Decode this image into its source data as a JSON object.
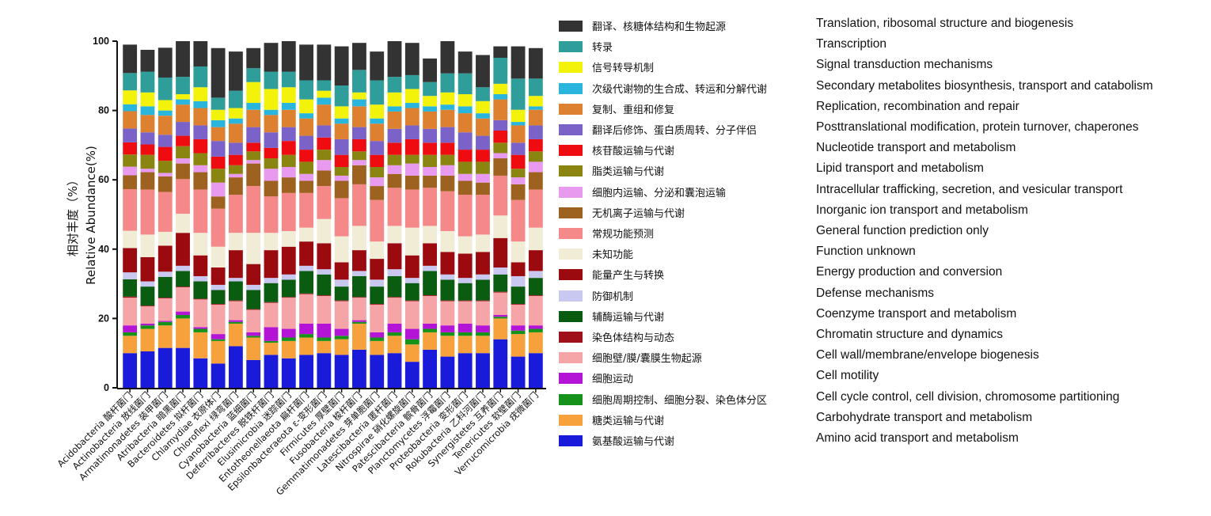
{
  "chart_data": {
    "type": "bar",
    "stacked": true,
    "ylabel_cn": "相对丰度（%）",
    "ylabel_en": "Relative Abundance(%)",
    "ylim": [
      0,
      100
    ],
    "yticks": [
      0,
      20,
      40,
      60,
      80,
      100
    ],
    "categories": [
      "Acidobacteria 酸杆菌门",
      "Actinobacteria 放线菌门",
      "Armatimonadetes 装甲菌门",
      "Atribacteria 暗黑菌门",
      "Bacteroidetes 拟杆菌门",
      "Chlamydiae 衣原体门",
      "Chloroflexi 绿弯菌门",
      "Cyanobacteria 蓝细菌门",
      "Deferribacteres 脱铁杆菌门",
      "Elusimicrobia 迷踪菌门",
      "Entotheonellaeota 扁杆菌门",
      "Epsilonbacteraeota ε-变形菌门",
      "Firmicutes 厚壁菌门",
      "Fusobacteria 梭杆菌门",
      "Gemmatimonadetes 芽单胞菌门",
      "Latescibacteria 匿杆菌门",
      "Nitrospirae 硝化螺旋菌门",
      "Patescibacteria 髌骨菌门",
      "Planctomycetes 浮霉菌门",
      "Proteobacteria 变形菌门",
      "Rokubacteria 乙科河菌门",
      "Synergistetes 互养菌门",
      "Tenericutes 软壁菌门",
      "Verrucomicrobia 疣微菌门"
    ],
    "series": [
      {
        "name": "氨基酸运输与代谢",
        "name_en": "Amino acid transport and metabolism",
        "color": "#1a1adb",
        "values": [
          10,
          10.5,
          11.5,
          11.5,
          8.5,
          7,
          12,
          8,
          9.5,
          8.5,
          9.5,
          10,
          9.5,
          11,
          9.5,
          10,
          7.5,
          11,
          9,
          10,
          10,
          14,
          9,
          10
        ]
      },
      {
        "name": "糖类运输与代谢",
        "name_en": "Carbohydrate transport and metabolism",
        "color": "#f6a13c",
        "values": [
          5,
          6.5,
          6.5,
          8.5,
          7.5,
          6.5,
          6.5,
          6.5,
          3.5,
          5,
          5,
          3.5,
          4.5,
          7.5,
          4,
          5,
          5,
          5,
          6,
          5,
          5,
          6,
          6.5,
          6
        ]
      },
      {
        "name": "细胞周期控制、细胞分裂、染色体分区",
        "name_en": "Cell cycle control, cell division, chromosome partitioning",
        "color": "#16921a",
        "values": [
          1,
          1,
          1,
          1,
          1,
          0.5,
          0.5,
          0.5,
          0.5,
          1,
          1,
          1,
          1,
          0.5,
          1,
          1,
          1.5,
          1,
          1,
          1,
          1,
          0.5,
          1,
          1
        ]
      },
      {
        "name": "细胞运动",
        "name_en": "Cell motility",
        "color": "#b414d6",
        "values": [
          2,
          0.5,
          0.3,
          1,
          0.5,
          1.5,
          0.5,
          1,
          4,
          2.5,
          3,
          4,
          2,
          0.5,
          1.5,
          2.5,
          3,
          1.5,
          2,
          2.5,
          2,
          0.5,
          1.5,
          1
        ]
      },
      {
        "name": "细胞壁/膜/囊膜生物起源",
        "name_en": "Cell wall/membrane/envelope biogenesis",
        "color": "#f5a5a8",
        "values": [
          8,
          5,
          6.5,
          7,
          8,
          8.5,
          5.5,
          6.5,
          7,
          9,
          8.5,
          8,
          8,
          6.5,
          8,
          7.5,
          8,
          8,
          7,
          6.5,
          7,
          6.5,
          6,
          8.5
        ]
      },
      {
        "name": "染色体结构与动态",
        "name_en": "Chromatin structure and dynamics",
        "color": "#a0101a",
        "values": [
          0.3,
          0.2,
          0.2,
          0.2,
          0.2,
          0.2,
          0.2,
          0.2,
          0.2,
          0.2,
          0.2,
          0.2,
          0.2,
          0.2,
          0.2,
          0.2,
          0.2,
          0.2,
          0.2,
          0.2,
          0.2,
          0.2,
          0.2,
          0.2
        ]
      },
      {
        "name": "辅酶运输与代谢",
        "name_en": "Coenzyme transport and metabolism",
        "color": "#0a5c10",
        "values": [
          5,
          5.5,
          6,
          4.5,
          5,
          4,
          5.5,
          5.5,
          5.5,
          5,
          6.5,
          6,
          4,
          6,
          5,
          6,
          5,
          7,
          6,
          5,
          6,
          5,
          5,
          5
        ]
      },
      {
        "name": "防御机制",
        "name_en": "Defense mechanisms",
        "color": "#c8c8f0",
        "values": [
          2,
          1.5,
          1.5,
          1.5,
          1.5,
          1.5,
          1,
          1.5,
          1.5,
          1.5,
          1.5,
          1.5,
          2,
          1.5,
          2,
          2,
          1.5,
          1.5,
          1.5,
          1.5,
          1.5,
          2,
          3,
          2
        ]
      },
      {
        "name": "能量产生与转换",
        "name_en": "Energy production and conversion",
        "color": "#9a0a0e",
        "values": [
          7,
          7,
          7.5,
          9.5,
          6,
          5,
          8,
          6,
          8,
          8,
          7,
          7.5,
          5,
          6,
          6,
          7.5,
          6.5,
          6.5,
          6.5,
          7,
          6.5,
          8.5,
          4,
          6
        ]
      },
      {
        "name": "未知功能",
        "name_en": "Function unknown",
        "color": "#f1ecd6",
        "values": [
          5,
          6.5,
          4,
          5.5,
          6.5,
          6,
          5,
          9,
          5,
          4.5,
          4,
          7,
          7.5,
          7,
          5,
          5,
          8,
          5,
          6,
          5,
          5,
          6.5,
          6,
          6.5
        ]
      },
      {
        "name": "常规功能预测",
        "name_en": "General function prediction only",
        "color": "#f5898a",
        "values": [
          12,
          13,
          11.5,
          10,
          12.5,
          11,
          11,
          13.5,
          10.5,
          11,
          10,
          9.5,
          11,
          12,
          12,
          11,
          11,
          11,
          11.5,
          12,
          11.5,
          11.5,
          12,
          11
        ]
      },
      {
        "name": "无机离子运输与代谢",
        "name_en": "Inorganic ion transport and metabolism",
        "color": "#9e6220",
        "values": [
          4,
          5,
          4.5,
          4.5,
          5,
          3.5,
          5,
          6.5,
          4.5,
          4.5,
          3.5,
          4.5,
          5,
          5.5,
          4,
          4,
          4,
          3.5,
          4.5,
          4,
          3.5,
          5,
          4.5,
          5
        ]
      },
      {
        "name": "细胞内运输、分泌和囊泡运输",
        "name_en": "Intracellular trafficking, secretion, and vesicular transport",
        "color": "#e79aee",
        "values": [
          2.5,
          1,
          1,
          1.5,
          2,
          4,
          1,
          1,
          3.5,
          3,
          2,
          3,
          1.5,
          1.5,
          2.5,
          2.5,
          3.5,
          2.5,
          3,
          2,
          2.5,
          1.5,
          2,
          3
        ]
      },
      {
        "name": "脂类运输与代谢",
        "name_en": "Lipid transport and metabolism",
        "color": "#8a8410",
        "values": [
          3.5,
          4,
          3.5,
          3.5,
          3.5,
          4,
          2.5,
          2.5,
          3,
          3.5,
          3.5,
          3,
          2.5,
          2.5,
          3,
          3,
          2.5,
          3.5,
          3,
          3.5,
          3.5,
          3,
          2.5,
          3
        ]
      },
      {
        "name": "核苷酸运输与代谢",
        "name_en": "Nucleotide transport and metabolism",
        "color": "#ee0c10",
        "values": [
          3.5,
          3,
          4,
          3,
          4,
          3.5,
          3,
          2.5,
          3,
          4,
          3.5,
          3.5,
          3.5,
          3.5,
          3.5,
          3.5,
          4.5,
          3.5,
          3.5,
          3.5,
          3.5,
          3.5,
          4,
          3.5
        ]
      },
      {
        "name": "翻译后修饰、蛋白质周转、分子伴侣",
        "name_en": "Posttranslational modification, protein turnover, chaperones",
        "color": "#7a62c8",
        "values": [
          4,
          3.5,
          3.5,
          4,
          4,
          4.5,
          3.5,
          4.5,
          4.5,
          4,
          4,
          3.5,
          4.5,
          3.5,
          4,
          4,
          4,
          4,
          4.5,
          5,
          4,
          3,
          3.5,
          4
        ]
      },
      {
        "name": "复制、重组和修复",
        "name_en": "Replication, recombination and repair",
        "color": "#dd8030",
        "values": [
          5,
          5,
          5.5,
          5,
          5,
          4,
          5.5,
          5,
          5,
          5,
          5,
          6,
          4.5,
          6,
          5,
          5,
          5,
          5,
          5,
          5.5,
          5,
          6,
          5,
          4.5
        ]
      },
      {
        "name": "次级代谢物的生合成、转运和分解代谢",
        "name_en": "Secondary metabolites biosynthesis, transport and catabolism",
        "color": "#2ab6dc",
        "values": [
          2,
          2.5,
          1.5,
          1.5,
          2,
          2,
          1.5,
          2,
          1.5,
          2,
          1.5,
          2,
          1.5,
          2,
          1.5,
          1.5,
          1.5,
          1.5,
          1.5,
          2,
          1.5,
          1.5,
          1,
          1
        ]
      },
      {
        "name": "信号转导机制",
        "name_en": "Signal transduction mechanisms",
        "color": "#f2f20a",
        "values": [
          4,
          4,
          3,
          1.5,
          4,
          3,
          3,
          6,
          6,
          4.5,
          4,
          2,
          3.5,
          2,
          4,
          4,
          4,
          3,
          3.5,
          3.5,
          3.5,
          3,
          3.5,
          3
        ]
      },
      {
        "name": "转录",
        "name_en": "Transcription",
        "color": "#2f9d99",
        "values": [
          5,
          6,
          6.5,
          5,
          6,
          3.5,
          5,
          4,
          5,
          4.5,
          5.5,
          3,
          6,
          6.5,
          7,
          4.5,
          4,
          4,
          5.5,
          6,
          4,
          7.5,
          9,
          5
        ]
      },
      {
        "name": "翻译、核糖体结构和生物起源",
        "name_en": "Translation, ribosomal structure and biogenesis",
        "color": "#333333",
        "values": [
          8.2,
          6.3,
          8.6,
          10.3,
          7.8,
          14.3,
          11.3,
          5.8,
          8.3,
          10.2,
          10.3,
          10.3,
          11.3,
          7.8,
          8.3,
          10.3,
          9.3,
          6.8,
          11.8,
          6.3,
          9.3,
          3.3,
          9.3,
          8.8
        ]
      }
    ]
  }
}
